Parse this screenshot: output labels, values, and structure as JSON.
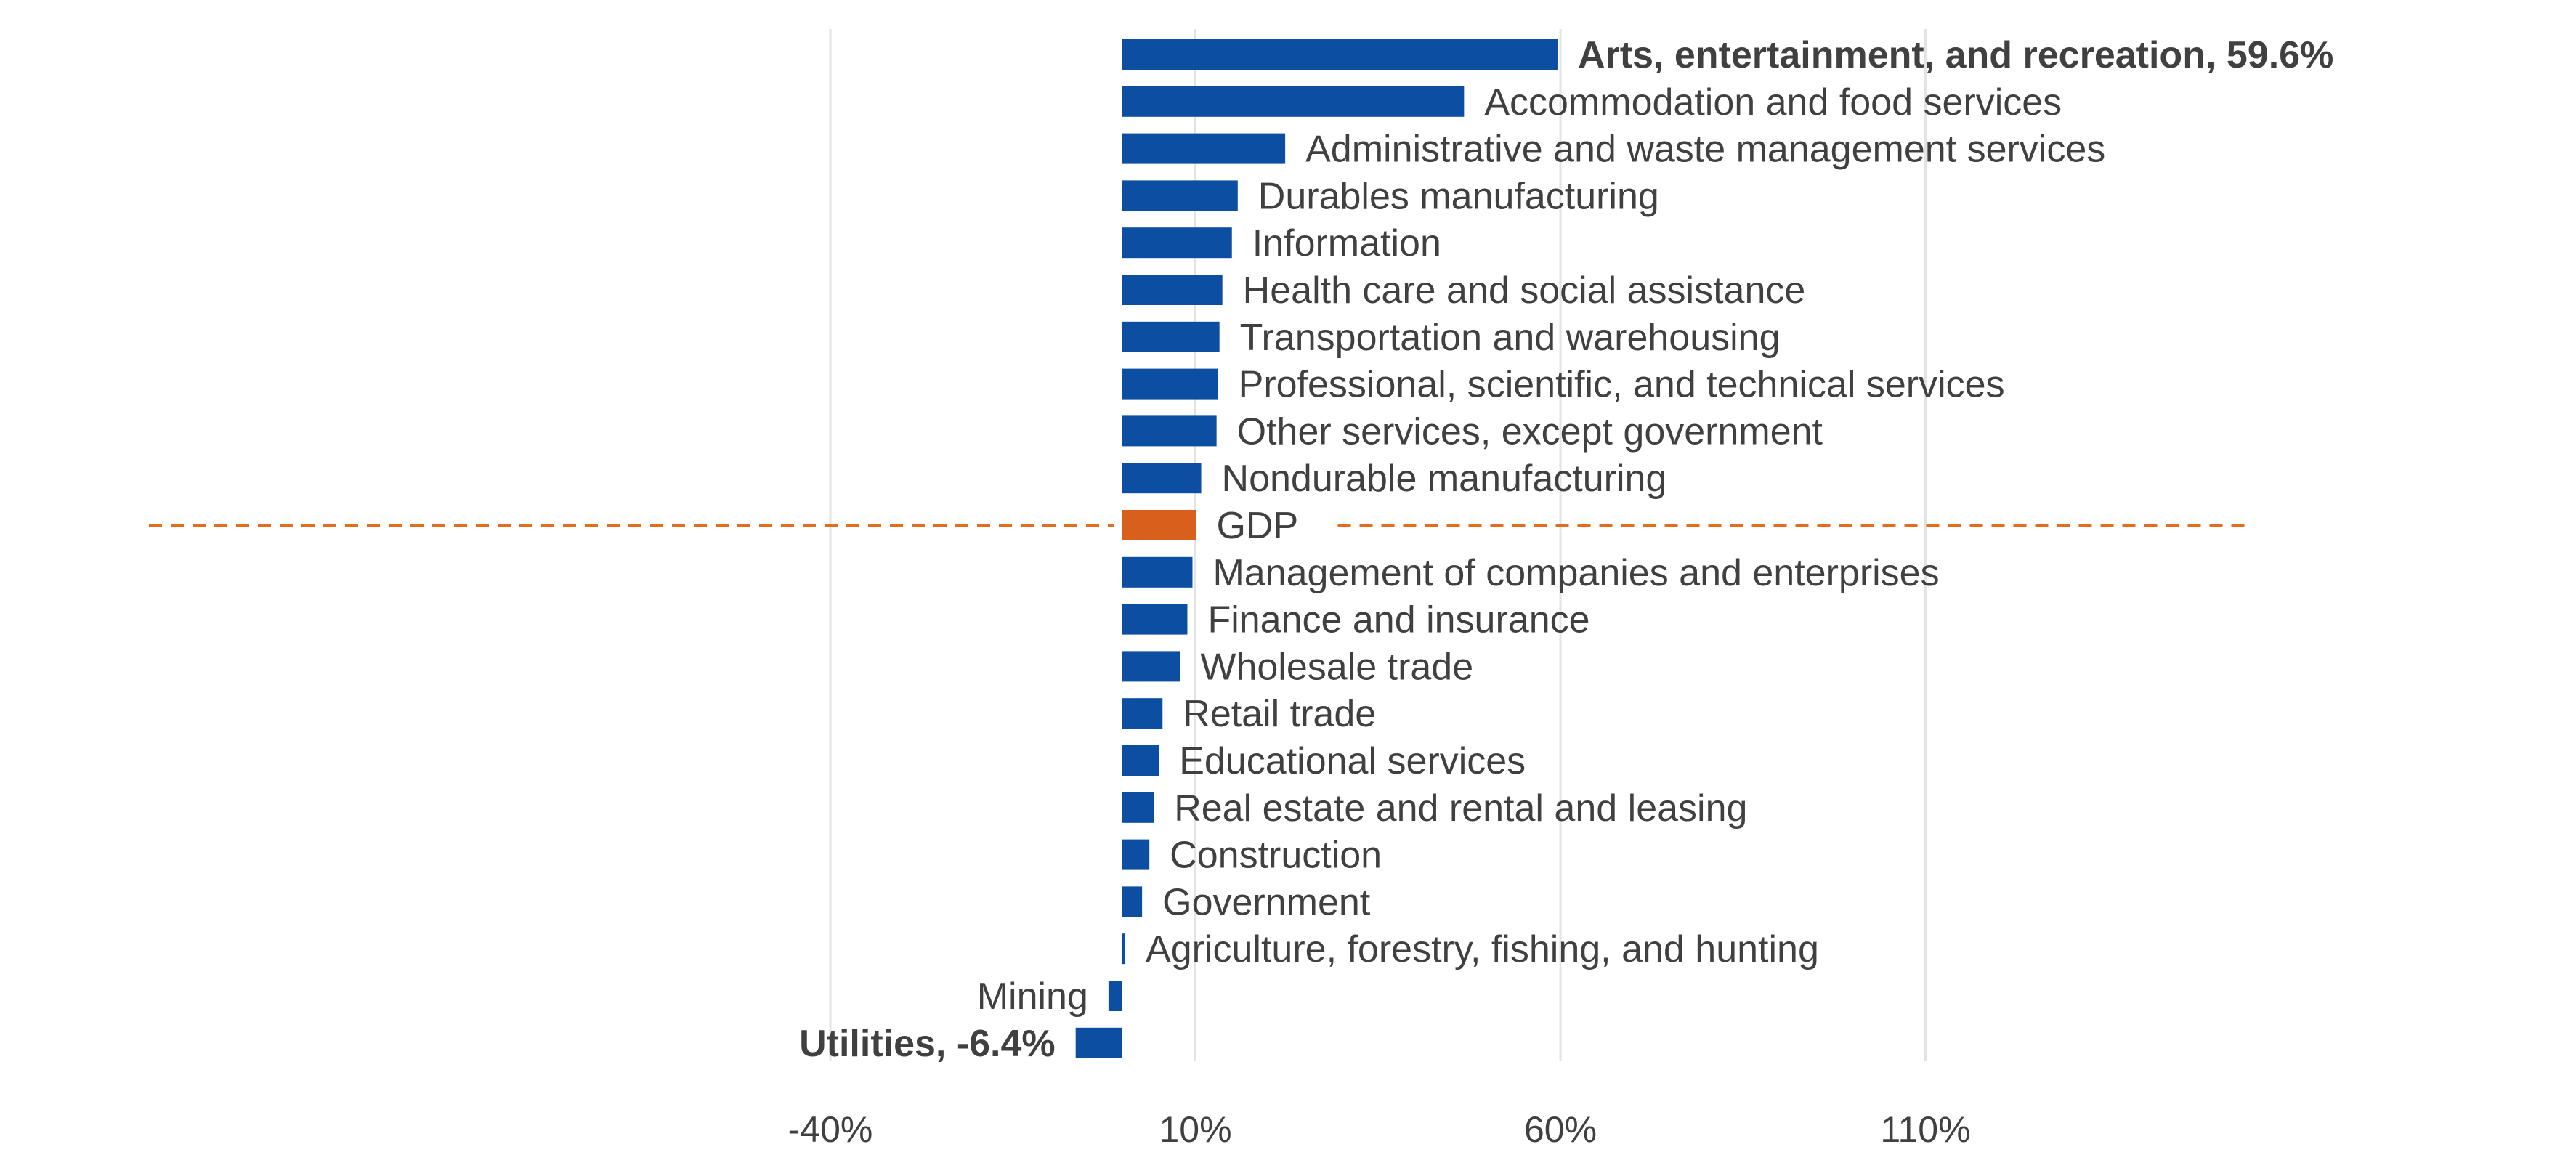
{
  "chart_data": {
    "type": "bar",
    "orientation": "horizontal",
    "title": "",
    "xlabel": "",
    "ylabel": "",
    "xlim": [
      -80,
      160
    ],
    "x_ticks": [
      -40,
      10,
      60,
      110
    ],
    "x_tick_labels": [
      "-40%",
      "10%",
      "60%",
      "110%"
    ],
    "grid": "vertical",
    "legend": "none",
    "reference_line": {
      "category": "GDP",
      "value": 10.1,
      "style": "dashed",
      "color": "#E36C1E"
    },
    "colors": {
      "bar": "#0B4EA2",
      "highlight": "#D9601C",
      "gridline": "#E3E3E3",
      "text": "#404040"
    },
    "categories": [
      "Arts, entertainment, and recreation, 59.6%",
      "Accommodation and food services",
      "Administrative and waste management services",
      "Durables manufacturing",
      "Information",
      "Health care and social assistance",
      "Transportation and warehousing",
      "Professional, scientific, and technical services",
      "Other services, except government",
      "Nondurable manufacturing",
      "GDP",
      "Management of companies and enterprises",
      "Finance and insurance",
      "Wholesale trade",
      "Retail trade",
      "Educational services",
      "Real estate and rental and leasing",
      "Construction",
      "Government",
      "Agriculture, forestry, fishing, and hunting",
      "Mining",
      "Utilities, -6.4%"
    ],
    "values": [
      59.6,
      46.8,
      22.3,
      15.8,
      15.0,
      13.7,
      13.3,
      13.1,
      12.9,
      10.8,
      10.1,
      9.6,
      8.9,
      7.9,
      5.5,
      5.0,
      4.3,
      3.7,
      2.7,
      0.4,
      -1.9,
      -6.4
    ],
    "bold_categories": [
      "Arts, entertainment, and recreation, 59.6%",
      "Utilities, -6.4%"
    ],
    "highlight_category": "GDP"
  }
}
